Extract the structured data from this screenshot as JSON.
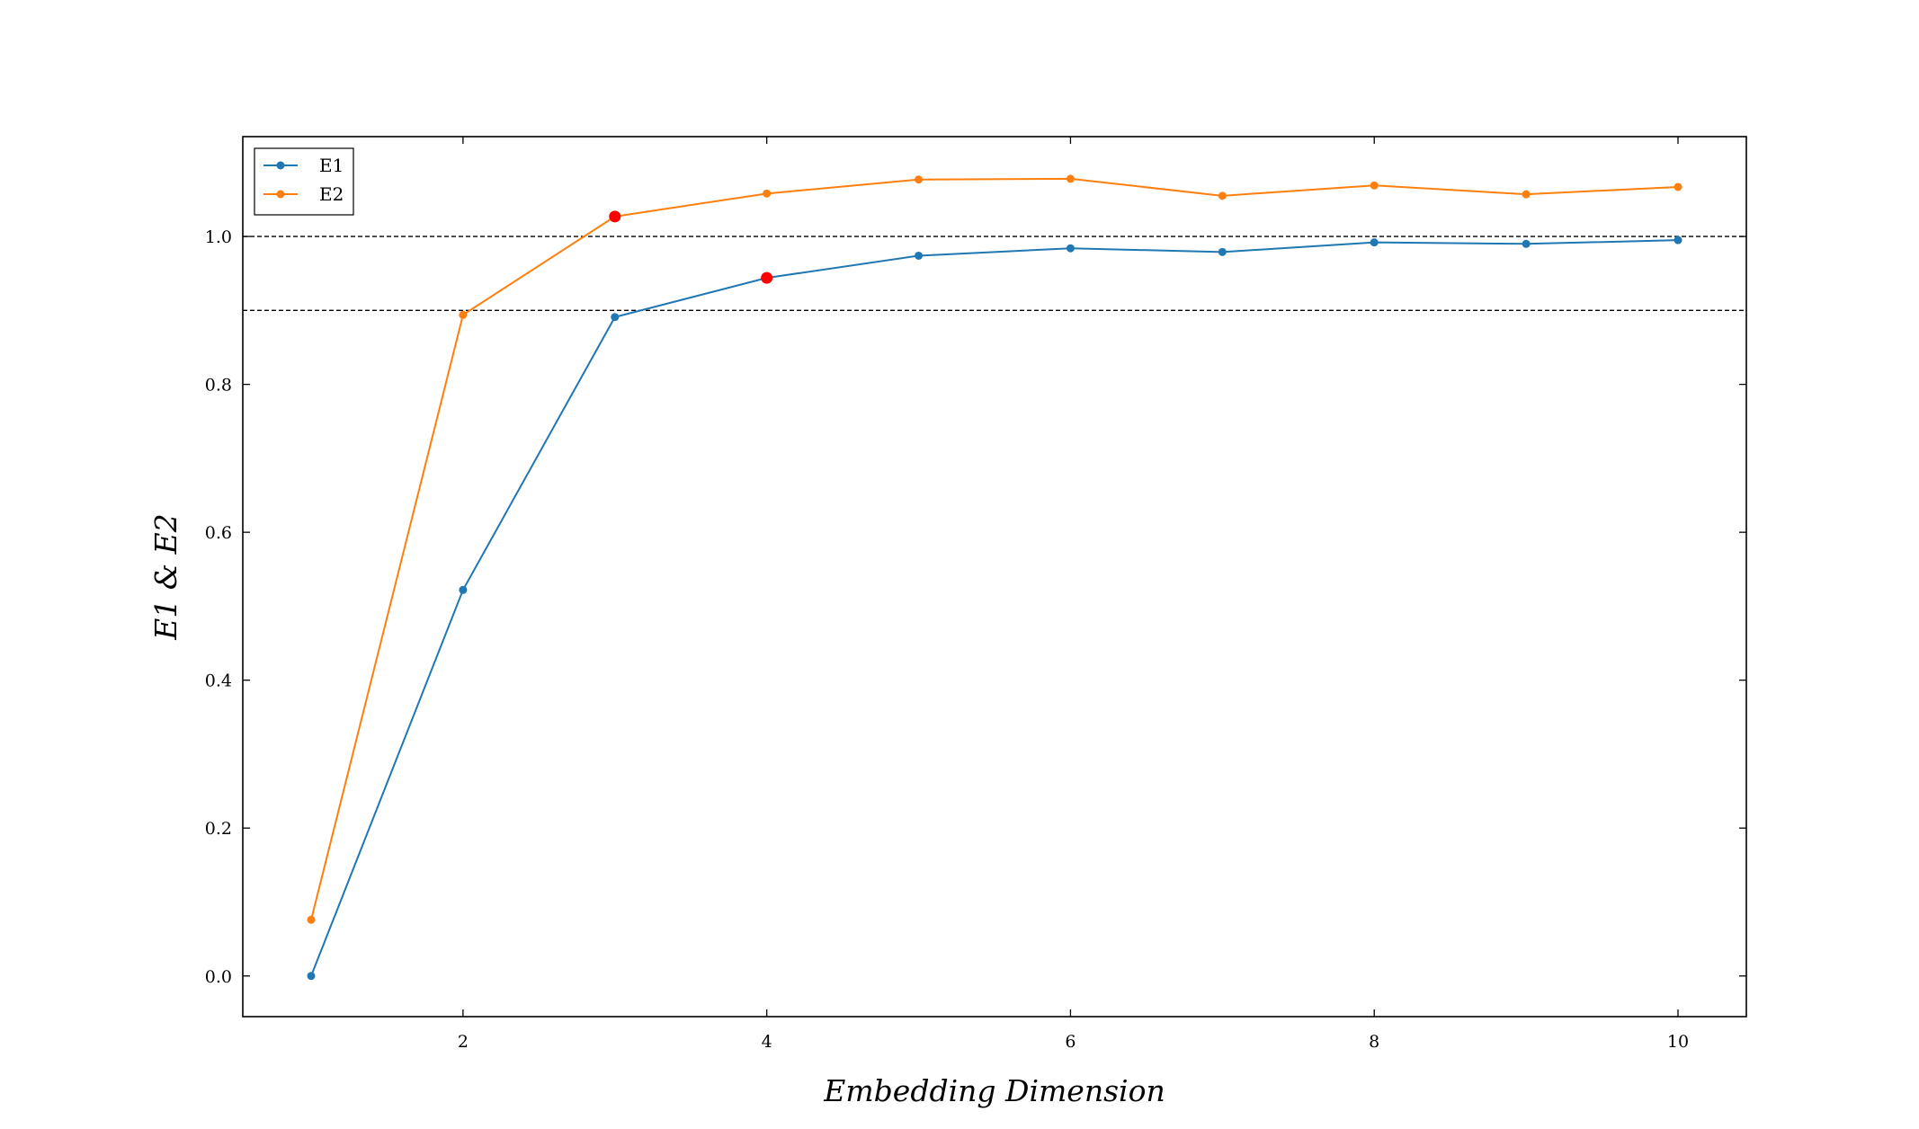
{
  "chart_data": {
    "type": "line",
    "xlabel": "Embedding Dimension",
    "ylabel": "E1 & E2",
    "xlim": [
      0.55,
      10.45
    ],
    "ylim": [
      -0.055,
      1.135
    ],
    "xticks": [
      2,
      4,
      6,
      8,
      10
    ],
    "yticks": [
      0.0,
      0.2,
      0.4,
      0.6,
      0.8,
      1.0
    ],
    "x": [
      1,
      2,
      3,
      4,
      5,
      6,
      7,
      8,
      9,
      10
    ],
    "series": [
      {
        "name": "E1",
        "color": "#1f77b4",
        "values": [
          0.0,
          0.522,
          0.891,
          0.944,
          0.974,
          0.984,
          0.979,
          0.992,
          0.99,
          0.995
        ]
      },
      {
        "name": "E2",
        "color": "#ff7f0e",
        "values": [
          0.076,
          0.894,
          1.027,
          1.058,
          1.077,
          1.078,
          1.055,
          1.069,
          1.057,
          1.067
        ]
      }
    ],
    "highlighted_points": [
      {
        "series": "E2",
        "x": 3,
        "y": 1.027,
        "color": "#ff0000"
      },
      {
        "series": "E1",
        "x": 4,
        "y": 0.944,
        "color": "#ff0000"
      }
    ],
    "reference_lines": [
      {
        "y": 1.0,
        "style": "dashed",
        "color": "#000000"
      },
      {
        "y": 0.9,
        "style": "dashed",
        "color": "#000000"
      }
    ],
    "legend": {
      "position": "top-left",
      "entries": [
        "E1",
        "E2"
      ]
    },
    "grid": false
  }
}
